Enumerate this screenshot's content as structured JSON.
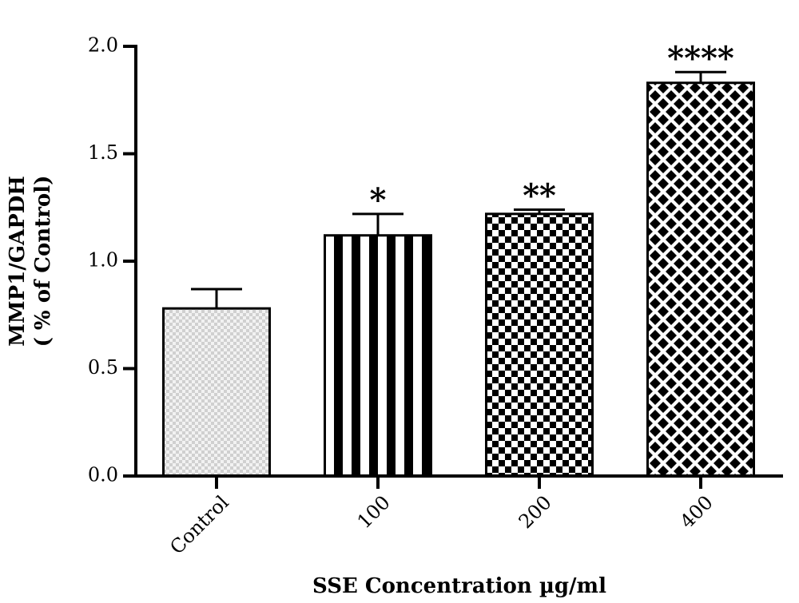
{
  "chart_data": {
    "type": "bar",
    "categories": [
      "Control",
      "100",
      "200",
      "400"
    ],
    "values": [
      0.78,
      1.12,
      1.22,
      1.83
    ],
    "errors": [
      0.09,
      0.1,
      0.02,
      0.05
    ],
    "annotations": [
      null,
      "*",
      "**",
      "****"
    ],
    "xlabel": "SSE Concentration µg/ml",
    "ylabel": [
      "MMP1/GAPDH",
      "( % of Control)"
    ],
    "ylim": [
      0,
      2
    ],
    "yticks": [
      {
        "value": 0,
        "label": "0.0"
      },
      0.5,
      {
        "value": 1,
        "label": "1.0"
      },
      1.5,
      {
        "value": 2,
        "label": "2.0"
      }
    ],
    "grid": false
  }
}
